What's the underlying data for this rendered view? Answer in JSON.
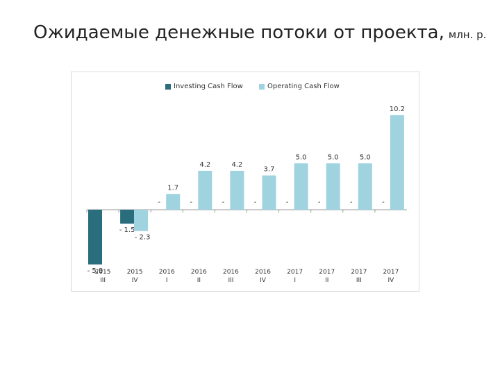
{
  "title": {
    "main": "Ожидаемые денежные потоки от проекта,",
    "unit": "млн. р."
  },
  "colors": {
    "investing": "#2a6d7d",
    "operating": "#9fd3e0",
    "axis": "#9a9a9a",
    "text": "#333333"
  },
  "chart_data": {
    "type": "bar",
    "title": "",
    "categories": [
      [
        "2015",
        "III"
      ],
      [
        "2015",
        "IV"
      ],
      [
        "2016",
        "I"
      ],
      [
        "2016",
        "II"
      ],
      [
        "2016",
        "III"
      ],
      [
        "2016",
        "IV"
      ],
      [
        "2017",
        "I"
      ],
      [
        "2017",
        "II"
      ],
      [
        "2017",
        "III"
      ],
      [
        "2017",
        "IV"
      ]
    ],
    "series": [
      {
        "name": "Investing Cash Flow",
        "values": [
          -5.9,
          -1.5,
          0,
          0,
          0,
          0,
          0,
          0,
          0,
          0
        ],
        "labels": [
          "- 5.9",
          "- 1.5",
          "-",
          "-",
          "-",
          "-",
          "-",
          "-",
          "-",
          "-"
        ]
      },
      {
        "name": "Operating Cash Flow",
        "values": [
          0,
          -2.3,
          1.7,
          4.2,
          4.2,
          3.7,
          5.0,
          5.0,
          5.0,
          10.2
        ],
        "labels": [
          "",
          "- 2.3",
          "1.7",
          "4.2",
          "4.2",
          "3.7",
          "5.0",
          "5.0",
          "5.0",
          "10.2"
        ]
      }
    ],
    "ylim": [
      -6,
      10.4
    ],
    "legend_position": "top",
    "grid": false
  }
}
